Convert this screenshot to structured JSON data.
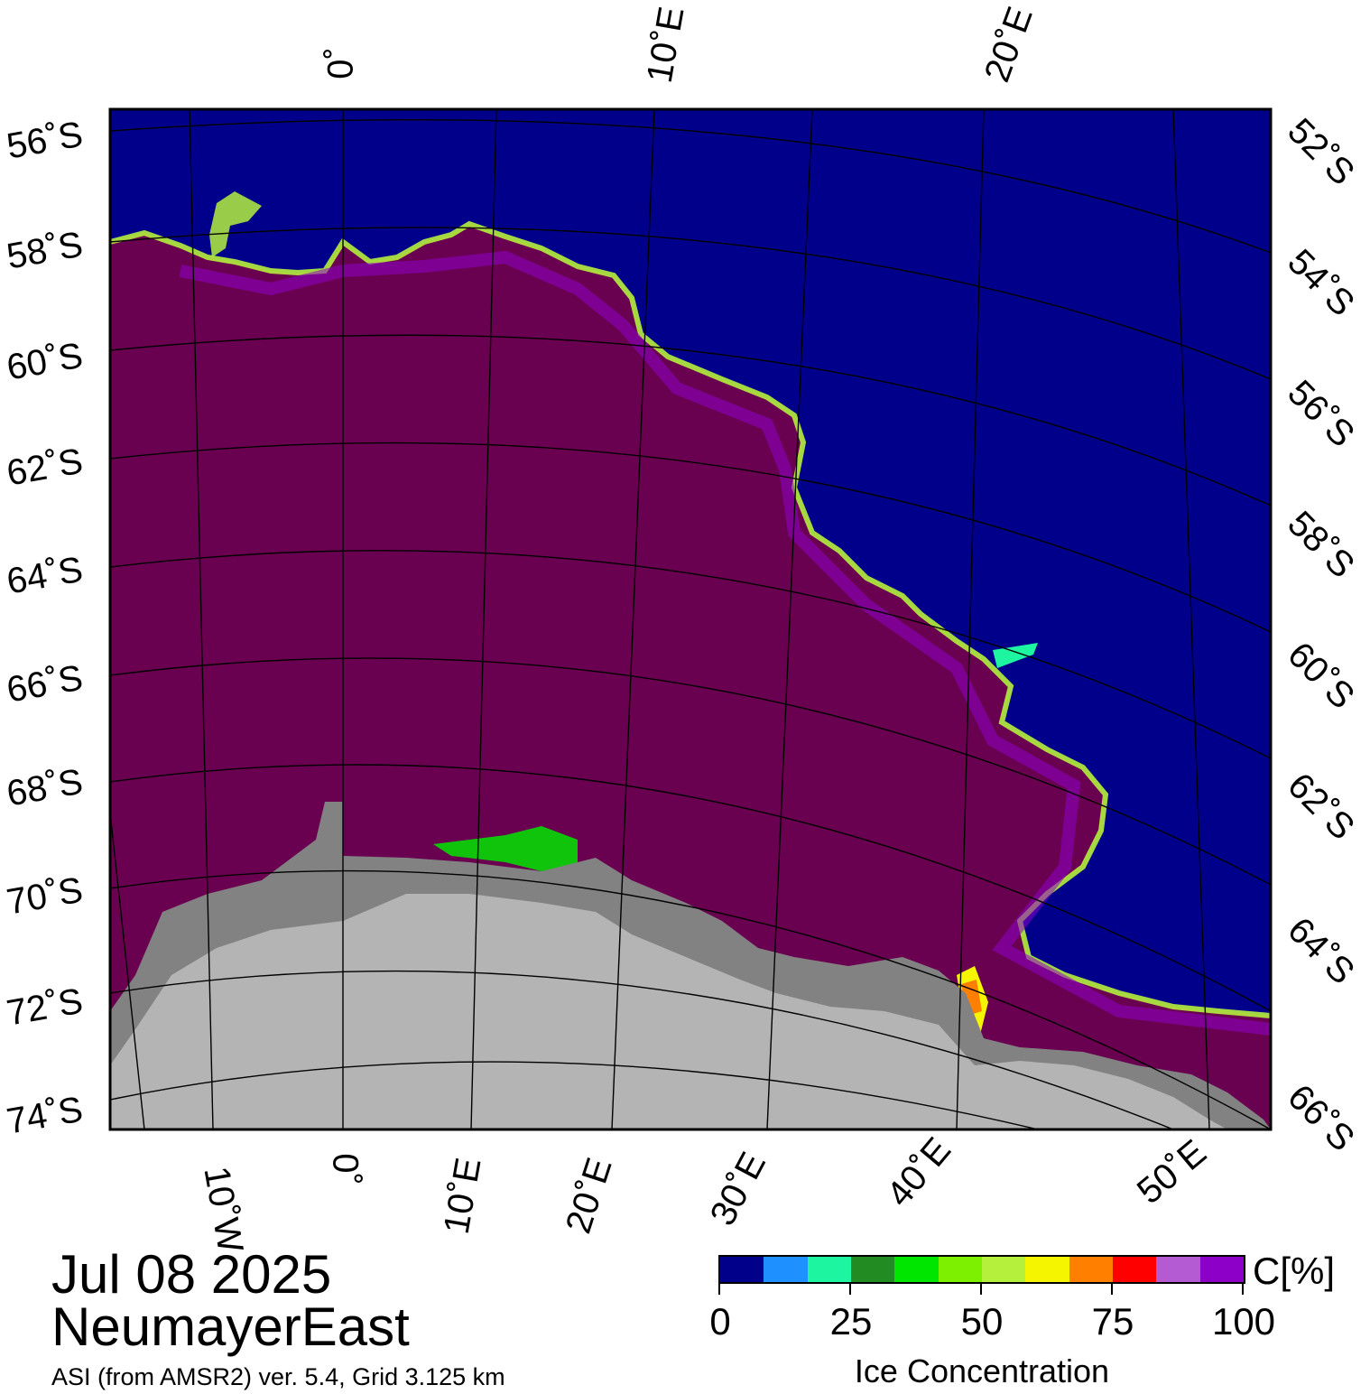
{
  "header": {
    "date": "Jul 08 2025",
    "region": "NeumayerEast",
    "product": "ASI (from AMSR2) ver. 5.4,  Grid 3.125 km"
  },
  "colors": {
    "ocean": "#00008b",
    "sea_ice": "#6a0050",
    "land_ice": "#b4b4b4",
    "ice_shelf": "#828282"
  },
  "axes": {
    "top_longitudes": [
      "0˚",
      "10˚E",
      "20˚E"
    ],
    "bottom_longitudes": [
      "10˚W",
      "0˚",
      "10˚E",
      "20˚E",
      "30˚E",
      "40˚E",
      "50˚E"
    ],
    "left_latitudes": [
      "56˚S",
      "58˚S",
      "60˚S",
      "62˚S",
      "64˚S",
      "66˚S",
      "68˚S",
      "70˚S",
      "72˚S",
      "74˚S"
    ],
    "right_latitudes": [
      "52˚S",
      "54˚S",
      "56˚S",
      "58˚S",
      "60˚S",
      "62˚S",
      "64˚S",
      "66˚S"
    ]
  },
  "legend": {
    "unit": "C[%]",
    "title": "Ice Concentration",
    "ticks": [
      "0",
      "25",
      "50",
      "75",
      "100"
    ],
    "colors": [
      "#00008b",
      "#1e90ff",
      "#1ef5a0",
      "#228b22",
      "#00e600",
      "#7cf000",
      "#b4f03c",
      "#f5f500",
      "#ff8000",
      "#ff0000",
      "#b45ad2",
      "#8c00c8"
    ]
  }
}
